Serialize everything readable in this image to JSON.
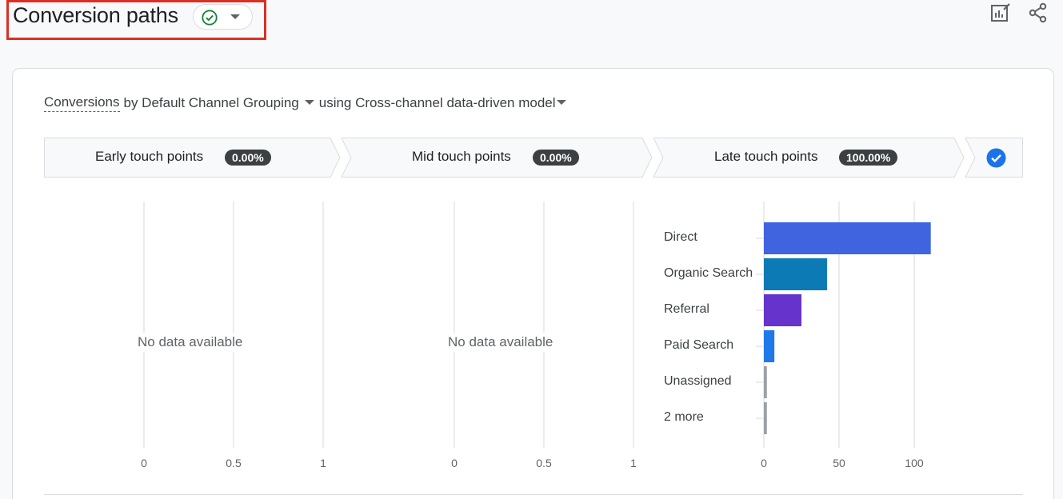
{
  "header": {
    "title": "Conversion paths",
    "status_icon": "check-circle-icon",
    "status_color": "#188038",
    "actions": [
      {
        "name": "customize-report-icon"
      },
      {
        "name": "share-icon"
      }
    ]
  },
  "card": {
    "subtitle": {
      "metric": "Conversions",
      "dimension": "by Default Channel Grouping",
      "model": "using Cross-channel data-driven model"
    },
    "stages": [
      {
        "label": "Early touch points",
        "badge": "0.00%"
      },
      {
        "label": "Mid touch points",
        "badge": "0.00%"
      },
      {
        "label": "Late touch points",
        "badge": "100.00%"
      }
    ],
    "stage_selected_icon": "check-circle-filled-icon",
    "accent": "#1a73e8",
    "empty_text": "No data available"
  },
  "chart_data": [
    {
      "type": "bar",
      "panel": "Early touch points",
      "categories": [],
      "values": [],
      "xlim": [
        0,
        1
      ],
      "xticks": [
        "0",
        "0.5",
        "1"
      ]
    },
    {
      "type": "bar",
      "panel": "Mid touch points",
      "categories": [],
      "values": [],
      "xlim": [
        0,
        1
      ],
      "xticks": [
        "0",
        "0.5",
        "1"
      ]
    },
    {
      "type": "bar",
      "orientation": "horizontal",
      "panel": "Late touch points",
      "categories": [
        "Direct",
        "Organic Search",
        "Referral",
        "Paid Search",
        "Unassigned",
        "2 more"
      ],
      "values": [
        111,
        42,
        25,
        7,
        2,
        2
      ],
      "colors": [
        "#4064e0",
        "#0b7ab5",
        "#6633cc",
        "#2079e8",
        "#9aa0a6",
        "#9aa0a6"
      ],
      "xlim": [
        0,
        118
      ],
      "xticks": [
        "0",
        "50",
        "100"
      ],
      "grid": true
    }
  ]
}
